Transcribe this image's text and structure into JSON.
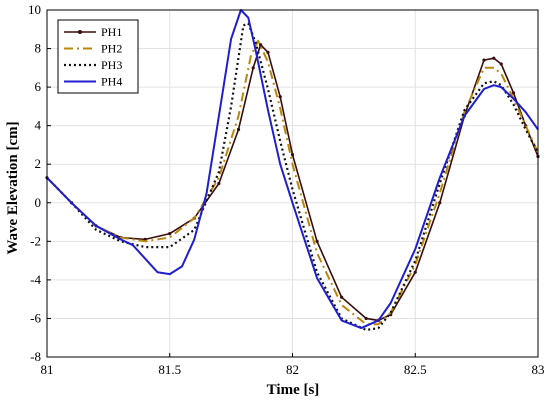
{
  "chart_data": {
    "type": "line",
    "title": "",
    "xlabel": "Time [s]",
    "ylabel": "Wave Elevation [cm]",
    "xlim": [
      81,
      83
    ],
    "ylim": [
      -8,
      10
    ],
    "x_ticks": [
      81,
      81.5,
      82,
      82.5,
      83
    ],
    "x_tick_labels": [
      "81",
      "81.5",
      "82",
      "82.5",
      "83"
    ],
    "y_ticks": [
      -8,
      -6,
      -4,
      -2,
      0,
      2,
      4,
      6,
      8,
      10
    ],
    "y_tick_labels": [
      "-8",
      "-6",
      "-4",
      "-2",
      "0",
      "2",
      "4",
      "6",
      "8",
      "10"
    ],
    "grid": true,
    "legend_position": "top-left",
    "series": [
      {
        "name": "PH1",
        "color": "#3a0d0d",
        "style": "solid-marker",
        "points": [
          [
            81,
            1.3
          ],
          [
            81.1,
            0
          ],
          [
            81.2,
            -1.2
          ],
          [
            81.3,
            -1.8
          ],
          [
            81.4,
            -1.9
          ],
          [
            81.5,
            -1.6
          ],
          [
            81.6,
            -0.8
          ],
          [
            81.7,
            1
          ],
          [
            81.78,
            3.8
          ],
          [
            81.84,
            7
          ],
          [
            81.87,
            8.2
          ],
          [
            81.9,
            7.8
          ],
          [
            81.95,
            5.5
          ],
          [
            82,
            2.5
          ],
          [
            82.1,
            -2
          ],
          [
            82.2,
            -4.9
          ],
          [
            82.3,
            -6
          ],
          [
            82.35,
            -6.1
          ],
          [
            82.4,
            -5.8
          ],
          [
            82.5,
            -3.6
          ],
          [
            82.6,
            0
          ],
          [
            82.7,
            4.5
          ],
          [
            82.78,
            7.4
          ],
          [
            82.82,
            7.5
          ],
          [
            82.85,
            7.2
          ],
          [
            82.9,
            5.7
          ],
          [
            82.95,
            4
          ],
          [
            83,
            2.4
          ]
        ]
      },
      {
        "name": "PH2",
        "color": "#b8860b",
        "style": "dashdot",
        "points": [
          [
            81,
            1.3
          ],
          [
            81.1,
            0
          ],
          [
            81.2,
            -1.2
          ],
          [
            81.3,
            -1.8
          ],
          [
            81.4,
            -2
          ],
          [
            81.5,
            -1.8
          ],
          [
            81.6,
            -0.8
          ],
          [
            81.7,
            1.3
          ],
          [
            81.78,
            4.5
          ],
          [
            81.83,
            7.6
          ],
          [
            81.86,
            8.4
          ],
          [
            81.9,
            7.3
          ],
          [
            81.95,
            4.9
          ],
          [
            82,
            2
          ],
          [
            82.1,
            -2.6
          ],
          [
            82.2,
            -5.3
          ],
          [
            82.3,
            -6.3
          ],
          [
            82.35,
            -6.3
          ],
          [
            82.4,
            -5.7
          ],
          [
            82.5,
            -3.2
          ],
          [
            82.6,
            0.5
          ],
          [
            82.7,
            4.7
          ],
          [
            82.78,
            7
          ],
          [
            82.82,
            7
          ],
          [
            82.85,
            6.7
          ],
          [
            82.9,
            5.4
          ],
          [
            82.95,
            4
          ],
          [
            83,
            2.6
          ]
        ]
      },
      {
        "name": "PH3",
        "color": "#111111",
        "style": "dotted",
        "points": [
          [
            81,
            1.3
          ],
          [
            81.1,
            0
          ],
          [
            81.2,
            -1.4
          ],
          [
            81.3,
            -2
          ],
          [
            81.4,
            -2.3
          ],
          [
            81.5,
            -2.3
          ],
          [
            81.6,
            -1.4
          ],
          [
            81.7,
            1.6
          ],
          [
            81.75,
            5
          ],
          [
            81.8,
            9.2
          ],
          [
            81.82,
            9.3
          ],
          [
            81.85,
            8.3
          ],
          [
            81.9,
            5.9
          ],
          [
            81.95,
            3.2
          ],
          [
            82,
            0.7
          ],
          [
            82.1,
            -3.6
          ],
          [
            82.2,
            -6
          ],
          [
            82.3,
            -6.6
          ],
          [
            82.35,
            -6.5
          ],
          [
            82.4,
            -5.7
          ],
          [
            82.5,
            -3
          ],
          [
            82.6,
            1
          ],
          [
            82.7,
            4.8
          ],
          [
            82.78,
            6.2
          ],
          [
            82.82,
            6.3
          ],
          [
            82.85,
            6.1
          ],
          [
            82.9,
            5.1
          ],
          [
            82.95,
            3.8
          ],
          [
            83,
            2.6
          ]
        ]
      },
      {
        "name": "PH4",
        "color": "#1f1fd0",
        "style": "solid",
        "points": [
          [
            81,
            1.3
          ],
          [
            81.1,
            0
          ],
          [
            81.2,
            -1.2
          ],
          [
            81.3,
            -1.9
          ],
          [
            81.35,
            -2.2
          ],
          [
            81.4,
            -2.9
          ],
          [
            81.45,
            -3.6
          ],
          [
            81.5,
            -3.7
          ],
          [
            81.55,
            -3.3
          ],
          [
            81.6,
            -1.9
          ],
          [
            81.65,
            0.5
          ],
          [
            81.7,
            4.5
          ],
          [
            81.75,
            8.5
          ],
          [
            81.79,
            10
          ],
          [
            81.82,
            9.6
          ],
          [
            81.85,
            7.9
          ],
          [
            81.9,
            4.8
          ],
          [
            81.95,
            2
          ],
          [
            82,
            0
          ],
          [
            82.1,
            -3.9
          ],
          [
            82.2,
            -6.1
          ],
          [
            82.28,
            -6.5
          ],
          [
            82.35,
            -6.1
          ],
          [
            82.4,
            -5.2
          ],
          [
            82.5,
            -2.4
          ],
          [
            82.6,
            1.3
          ],
          [
            82.7,
            4.5
          ],
          [
            82.78,
            5.9
          ],
          [
            82.82,
            6.1
          ],
          [
            82.85,
            6
          ],
          [
            82.9,
            5.4
          ],
          [
            82.95,
            4.7
          ],
          [
            83,
            3.8
          ]
        ]
      }
    ]
  }
}
